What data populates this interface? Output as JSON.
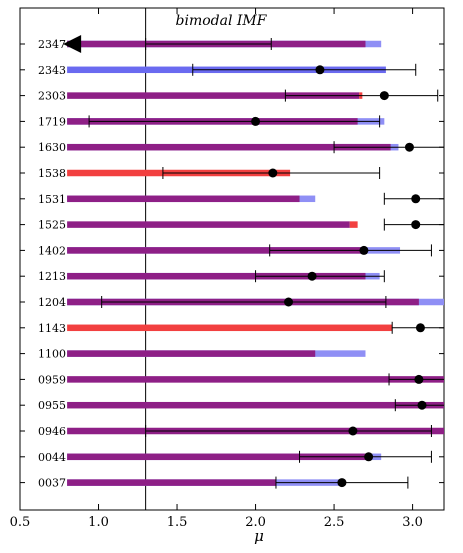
{
  "chart_data": {
    "type": "scatter",
    "title": "bimodal IMF",
    "xlabel": "μ",
    "ylabel": "",
    "xlim": [
      0.5,
      3.2
    ],
    "xticks": [
      "0.5",
      "1.0",
      "1.5",
      "2.0",
      "2.5",
      "3.0"
    ],
    "vertical_line_x": 1.3,
    "colors": {
      "purple": "#8e1f86",
      "blue": "#8f8ff5",
      "red": "#f24040",
      "point": "#000000"
    },
    "objects": [
      {
        "label": "2347",
        "bar_end": 2.7,
        "bar_color": "purple",
        "blue_end": 2.8,
        "point": null,
        "lower_limit": true,
        "err": [
          1.3,
          2.1
        ]
      },
      {
        "label": "2343",
        "bar_end": 2.83,
        "bar_color": "blue",
        "blue_end": null,
        "point": 2.41,
        "err": [
          1.6,
          3.02
        ]
      },
      {
        "label": "2303",
        "bar_end": 2.66,
        "bar_color": "purple",
        "red_tip": 2.68,
        "point": 2.82,
        "err": [
          2.19,
          3.16
        ]
      },
      {
        "label": "1719",
        "bar_end": 2.65,
        "bar_color": "purple",
        "blue_end": 2.82,
        "point": 2.0,
        "err": [
          0.94,
          2.79
        ]
      },
      {
        "label": "1630",
        "bar_end": 2.86,
        "bar_color": "purple",
        "blue_end": 2.91,
        "point": 2.98,
        "err": [
          2.5,
          3.2
        ]
      },
      {
        "label": "1538",
        "bar_end": 2.22,
        "bar_color": "red",
        "point": 2.11,
        "err": [
          1.41,
          2.79
        ]
      },
      {
        "label": "1531",
        "bar_end": 2.28,
        "bar_color": "purple",
        "blue_end": 2.38,
        "point": 3.02,
        "err": [
          2.82,
          3.2
        ]
      },
      {
        "label": "1525",
        "bar_end": 2.6,
        "bar_color": "purple",
        "red_tip": 2.65,
        "point": 3.02,
        "err": [
          2.82,
          3.2
        ]
      },
      {
        "label": "1402",
        "bar_end": 2.68,
        "bar_color": "purple",
        "blue_end": 2.92,
        "point": 2.69,
        "err": [
          2.09,
          3.12
        ]
      },
      {
        "label": "1213",
        "bar_end": 2.7,
        "bar_color": "purple",
        "blue_end": 2.79,
        "point": 2.36,
        "err": [
          2.0,
          2.82
        ]
      },
      {
        "label": "1204",
        "bar_end": 3.04,
        "bar_color": "purple",
        "blue_end": 3.2,
        "point": 2.21,
        "err": [
          1.02,
          2.83
        ]
      },
      {
        "label": "1143",
        "bar_end": 2.87,
        "bar_color": "red",
        "point": 3.05,
        "err": [
          2.87,
          3.2
        ]
      },
      {
        "label": "1100",
        "bar_end": 2.38,
        "bar_color": "purple",
        "blue_end": 2.7,
        "point": null,
        "err": null
      },
      {
        "label": "0959",
        "bar_end": 3.2,
        "bar_color": "purple",
        "point": 3.04,
        "err": [
          2.85,
          3.2
        ]
      },
      {
        "label": "0955",
        "bar_end": 3.2,
        "bar_color": "purple",
        "point": 3.06,
        "err": [
          2.89,
          3.2
        ]
      },
      {
        "label": "0946",
        "bar_end": 3.2,
        "bar_color": "purple",
        "point": 2.62,
        "err": [
          1.3,
          3.12
        ]
      },
      {
        "label": "0044",
        "bar_end": 2.74,
        "bar_color": "purple",
        "blue_end": 2.8,
        "point": 2.72,
        "err": [
          2.28,
          3.12
        ]
      },
      {
        "label": "0037",
        "bar_end": 2.13,
        "bar_color": "purple",
        "blue_end": 2.53,
        "point": 2.55,
        "err": [
          2.13,
          2.97
        ]
      }
    ]
  }
}
